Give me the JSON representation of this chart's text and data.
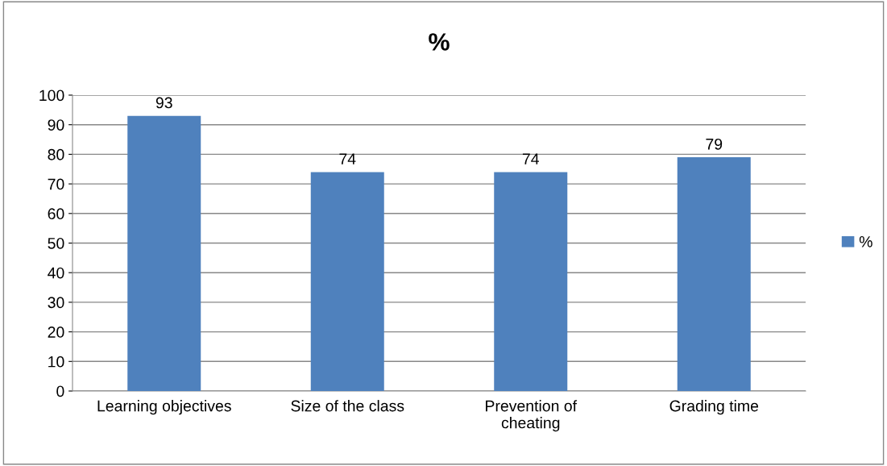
{
  "chart_data": {
    "type": "bar",
    "title": "%",
    "categories": [
      "Learning objectives",
      "Size of the class",
      "Prevention of\ncheating",
      "Grading time"
    ],
    "series": [
      {
        "name": "%",
        "color": "#4f81bd",
        "values": [
          93,
          74,
          74,
          79
        ]
      }
    ],
    "ylim": [
      0,
      100
    ],
    "yticks": [
      0,
      10,
      20,
      30,
      40,
      50,
      60,
      70,
      80,
      90,
      100
    ],
    "grid": "y",
    "legend": "right",
    "data_labels": true
  }
}
